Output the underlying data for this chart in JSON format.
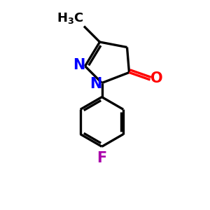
{
  "background_color": "#ffffff",
  "bond_color": "#000000",
  "N_color": "#0000ff",
  "O_color": "#ff0000",
  "F_color": "#aa00aa",
  "line_width": 2.4,
  "figsize": [
    3.0,
    3.0
  ],
  "dpi": 100,
  "xlim": [
    0,
    10
  ],
  "ylim": [
    0,
    10
  ]
}
